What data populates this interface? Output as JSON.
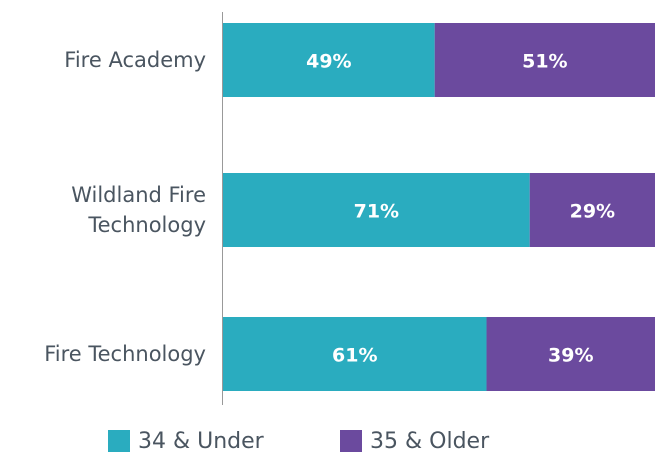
{
  "chart_data": {
    "type": "stacked-bar-horizontal",
    "categories": [
      "Fire Academy",
      "Wildland Fire Technology",
      "Fire Technology"
    ],
    "series": [
      {
        "name": "34 & Under",
        "color": "#2aacbf",
        "values": [
          49,
          71,
          61
        ],
        "value_labels": [
          "49%",
          "71%",
          "61%"
        ]
      },
      {
        "name": "35 & Older",
        "color": "#6b4a9e",
        "values": [
          51,
          29,
          39
        ],
        "value_labels": [
          "51%",
          "29%",
          "39%"
        ]
      }
    ],
    "xlim": [
      0,
      100
    ]
  }
}
